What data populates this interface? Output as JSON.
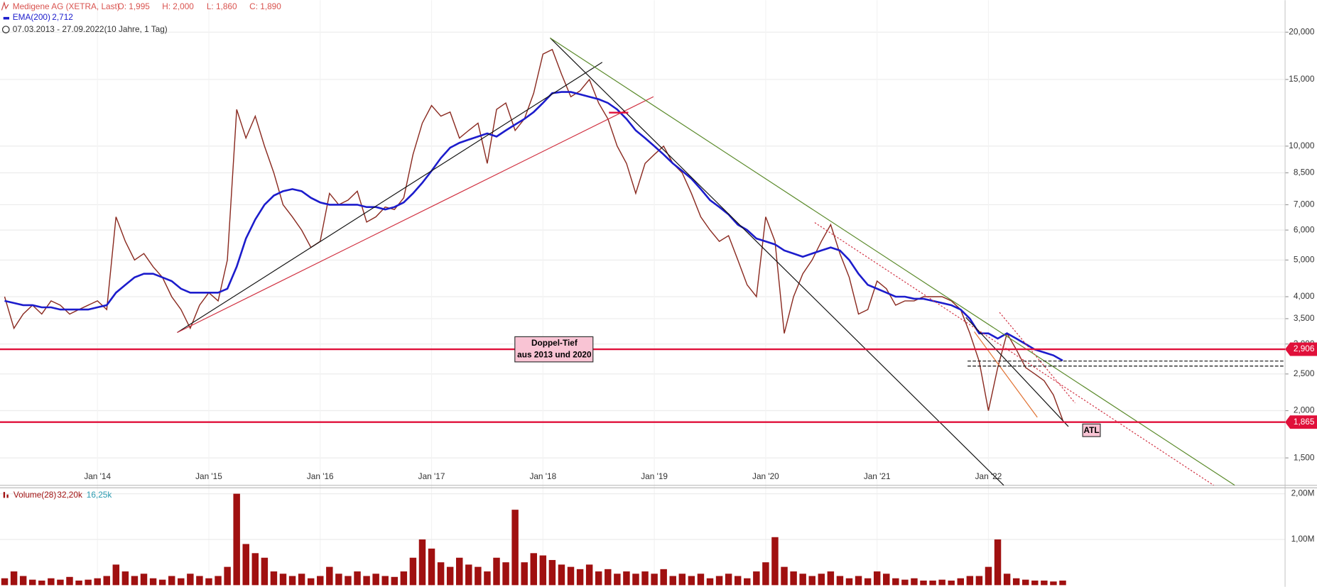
{
  "header": {
    "ohlc": [
      "O: 1,995",
      "H: 2,000",
      "L: 1,860",
      "C: 1,890"
    ],
    "period": "07.03.2013 - 27.09.2022",
    "period_note": "(10 Jahre, 1 Tag)"
  },
  "chart_data": {
    "type": "line",
    "log_scale": true,
    "grid": true,
    "categories": [
      null,
      null,
      null,
      null,
      null,
      null,
      null,
      null,
      null,
      null,
      "Jan '14",
      null,
      null,
      null,
      null,
      null,
      null,
      null,
      null,
      null,
      null,
      null,
      "Jan '15",
      null,
      null,
      null,
      null,
      null,
      null,
      null,
      null,
      null,
      null,
      null,
      "Jan '16",
      null,
      null,
      null,
      null,
      null,
      null,
      null,
      null,
      null,
      null,
      null,
      "Jan '17",
      null,
      null,
      null,
      null,
      null,
      null,
      null,
      null,
      null,
      null,
      null,
      "Jan '18",
      null,
      null,
      null,
      null,
      null,
      null,
      null,
      null,
      null,
      null,
      null,
      "Jan '19",
      null,
      null,
      null,
      null,
      null,
      null,
      null,
      null,
      null,
      null,
      null,
      "Jan '20",
      null,
      null,
      null,
      null,
      null,
      null,
      null,
      null,
      null,
      null,
      null,
      "Jan '21",
      null,
      null,
      null,
      null,
      null,
      null,
      null,
      null,
      null,
      null,
      null,
      "Jan '22",
      null,
      null,
      null,
      null,
      null,
      null,
      null,
      null
    ],
    "series": [
      {
        "name": "Medigene AG (XETRA, Last)",
        "color": "#8a2a20",
        "values": [
          4.0,
          3.3,
          3.6,
          3.8,
          3.6,
          3.9,
          3.8,
          3.6,
          3.7,
          3.8,
          3.9,
          3.7,
          6.5,
          5.6,
          5.0,
          5.2,
          4.8,
          4.5,
          4.0,
          3.7,
          3.3,
          3.8,
          4.1,
          3.9,
          5.0,
          12.5,
          10.5,
          12.0,
          10.0,
          8.5,
          7.0,
          6.5,
          6.0,
          5.4,
          5.6,
          7.5,
          7.0,
          7.2,
          7.6,
          6.3,
          6.5,
          6.9,
          6.8,
          7.3,
          9.5,
          11.5,
          12.8,
          12.0,
          12.3,
          10.5,
          11.0,
          11.5,
          9.0,
          12.5,
          13.0,
          11.0,
          11.8,
          13.8,
          17.5,
          18.0,
          15.5,
          13.5,
          14.0,
          15.0,
          13.0,
          11.8,
          10.0,
          9.0,
          7.5,
          9.0,
          9.5,
          10.0,
          9.0,
          8.5,
          7.5,
          6.5,
          6.0,
          5.6,
          5.8,
          5.0,
          4.3,
          4.0,
          6.5,
          5.6,
          3.2,
          4.0,
          4.6,
          5.0,
          5.6,
          6.2,
          5.2,
          4.5,
          3.6,
          3.7,
          4.4,
          4.2,
          3.8,
          3.9,
          3.9,
          4.0,
          4.0,
          4.0,
          3.9,
          3.7,
          3.2,
          2.7,
          2.0,
          2.6,
          3.2,
          2.9,
          2.6,
          2.5,
          2.4,
          2.2,
          1.89
        ]
      },
      {
        "name": "EMA(200)",
        "color": "#1c1ccc",
        "last_label": "2,712",
        "values": [
          3.9,
          3.85,
          3.8,
          3.8,
          3.75,
          3.75,
          3.7,
          3.7,
          3.7,
          3.7,
          3.75,
          3.8,
          4.1,
          4.3,
          4.5,
          4.6,
          4.6,
          4.5,
          4.4,
          4.2,
          4.1,
          4.1,
          4.1,
          4.1,
          4.2,
          4.8,
          5.7,
          6.4,
          7.0,
          7.4,
          7.6,
          7.7,
          7.6,
          7.3,
          7.1,
          7.0,
          7.0,
          7.0,
          7.0,
          6.9,
          6.9,
          6.8,
          6.9,
          7.1,
          7.5,
          8.0,
          8.6,
          9.3,
          9.9,
          10.2,
          10.4,
          10.6,
          10.8,
          10.6,
          11.0,
          11.4,
          11.8,
          12.3,
          13.0,
          13.8,
          13.9,
          13.9,
          13.7,
          13.5,
          13.3,
          13.0,
          12.5,
          11.8,
          11.0,
          10.5,
          10.0,
          9.5,
          9.0,
          8.6,
          8.2,
          7.7,
          7.2,
          6.9,
          6.6,
          6.2,
          6.0,
          5.7,
          5.6,
          5.5,
          5.3,
          5.2,
          5.1,
          5.2,
          5.3,
          5.4,
          5.3,
          5.0,
          4.6,
          4.3,
          4.2,
          4.1,
          4.0,
          4.0,
          3.95,
          3.95,
          3.9,
          3.85,
          3.8,
          3.7,
          3.5,
          3.2,
          3.2,
          3.1,
          3.2,
          3.1,
          3.0,
          2.9,
          2.85,
          2.8,
          2.712
        ]
      }
    ],
    "ylim": [
      1.27,
      24.3
    ],
    "yticks": [
      {
        "value": 1.5,
        "label": "1,500"
      },
      {
        "value": 2,
        "label": "2,000"
      },
      {
        "value": 2.5,
        "label": "2,500"
      },
      {
        "value": 3,
        "label": "3,000"
      },
      {
        "value": 3.5,
        "label": "3,500"
      },
      {
        "value": 4,
        "label": "4,000"
      },
      {
        "value": 5,
        "label": "5,000"
      },
      {
        "value": 6,
        "label": "6,000"
      },
      {
        "value": 7,
        "label": "7,000"
      },
      {
        "value": 8.5,
        "label": "8,500"
      },
      {
        "value": 10,
        "label": "10,000"
      },
      {
        "value": 15,
        "label": "15,000"
      },
      {
        "value": 20,
        "label": "20,000"
      }
    ],
    "levels": [
      {
        "value": 2.906,
        "label": "2,906",
        "color": "#e0103a"
      },
      {
        "value": 1.865,
        "label": "1,865",
        "color": "#e0103a"
      }
    ],
    "annotations": [
      "Doppel-Tief",
      "aus 2013 und 2020",
      "ATL"
    ],
    "volume": {
      "name": "Volume(28)",
      "color": "#a01010",
      "last_label": "32,20k",
      "avg_label": "16,25k",
      "ylim": [
        0,
        2130000
      ],
      "yticks": [
        {
          "value": 1000000,
          "label": "1,00M"
        },
        {
          "value": 2000000,
          "label": "2,00M"
        }
      ],
      "values": [
        150000,
        300000,
        200000,
        120000,
        100000,
        150000,
        120000,
        180000,
        100000,
        120000,
        150000,
        200000,
        450000,
        300000,
        200000,
        250000,
        150000,
        120000,
        200000,
        150000,
        250000,
        200000,
        150000,
        200000,
        400000,
        2000000,
        900000,
        700000,
        600000,
        300000,
        250000,
        200000,
        250000,
        150000,
        200000,
        400000,
        250000,
        200000,
        300000,
        200000,
        250000,
        200000,
        180000,
        300000,
        600000,
        1000000,
        800000,
        500000,
        400000,
        600000,
        450000,
        400000,
        300000,
        600000,
        500000,
        1650000,
        500000,
        700000,
        650000,
        550000,
        450000,
        400000,
        350000,
        450000,
        300000,
        350000,
        250000,
        300000,
        250000,
        300000,
        250000,
        350000,
        200000,
        250000,
        200000,
        250000,
        150000,
        200000,
        250000,
        200000,
        150000,
        300000,
        500000,
        1050000,
        400000,
        300000,
        250000,
        200000,
        250000,
        300000,
        200000,
        150000,
        200000,
        150000,
        300000,
        250000,
        150000,
        120000,
        150000,
        100000,
        100000,
        120000,
        100000,
        150000,
        200000,
        200000,
        400000,
        1000000,
        250000,
        150000,
        120000,
        100000,
        100000,
        80000,
        100000
      ]
    }
  }
}
